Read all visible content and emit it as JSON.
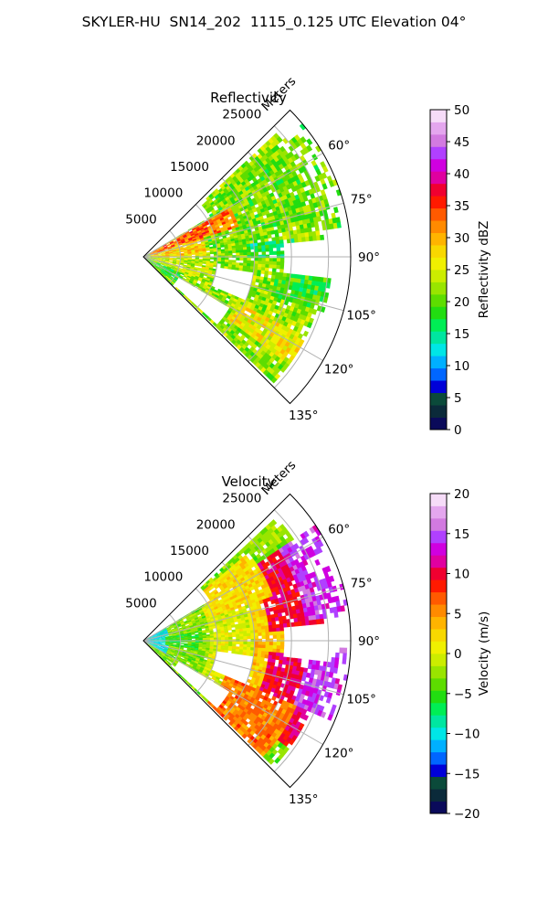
{
  "figure": {
    "title": "SKYLER-HU  SN14_202  1115_0.125 UTC Elevation 04°"
  },
  "chart_data": [
    {
      "type": "heatmap",
      "title": "Reflectivity",
      "projection": "polar-sector",
      "azimuth_range_deg": [
        45,
        135
      ],
      "azimuth_ticks": [
        60,
        75,
        90,
        105,
        120,
        135
      ],
      "azimuth_tick_labels": [
        "60°",
        "75°",
        "90°",
        "105°",
        "120°",
        "135°"
      ],
      "range_max_m": 28000,
      "range_ticks": [
        5000,
        10000,
        15000,
        20000,
        25000
      ],
      "range_tick_labels": [
        "5000",
        "10000",
        "15000",
        "20000",
        "25000"
      ],
      "range_label": "Meters",
      "grid": true,
      "colorbar": {
        "label": "Reflectivity dBZ",
        "min": 0,
        "max": 50,
        "ticks": [
          0,
          5,
          10,
          15,
          20,
          25,
          30,
          35,
          40,
          45,
          50
        ],
        "tick_labels": [
          "0",
          "5",
          "10",
          "15",
          "20",
          "25",
          "30",
          "35",
          "40",
          "45",
          "50"
        ],
        "colors": [
          "#0a0a5a",
          "#0b2a3a",
          "#0b4a3a",
          "#0000d8",
          "#0066ff",
          "#00b0ff",
          "#00e6e6",
          "#00e6a0",
          "#00ee55",
          "#22dd11",
          "#5ddd00",
          "#99e500",
          "#cced00",
          "#f0f000",
          "#f8d800",
          "#ffb400",
          "#ff8a00",
          "#ff5a00",
          "#ff1a00",
          "#f00030",
          "#e000a0",
          "#d000e0",
          "#b040ff",
          "#d27ae0",
          "#e4a6ee",
          "#f6dcf8"
        ]
      },
      "regions": [
        {
          "az": [
            47,
            133
          ],
          "r": [
            0,
            24000
          ],
          "value": 22
        },
        {
          "az": [
            50,
            80
          ],
          "r": [
            8000,
            28000
          ],
          "value": 21
        },
        {
          "az": [
            60,
            72
          ],
          "r": [
            800,
            13000
          ],
          "value": 32
        },
        {
          "az": [
            72,
            88
          ],
          "r": [
            1000,
            8000
          ],
          "value": 28
        },
        {
          "az": [
            88,
            110
          ],
          "r": [
            1500,
            9000
          ],
          "value": 24
        },
        {
          "az": [
            112,
            128
          ],
          "r": [
            500,
            5500
          ],
          "value": 18
        },
        {
          "az": [
            115,
            126
          ],
          "r": [
            14000,
            24000
          ],
          "value": 26
        },
        {
          "az": [
            96,
            106
          ],
          "r": [
            18000,
            25000
          ],
          "value": 19
        },
        {
          "az": [
            82,
            90
          ],
          "r": [
            14000,
            20000
          ],
          "value": 17
        },
        {
          "az": [
            62,
            70
          ],
          "r": [
            3000,
            9000
          ],
          "value": 34
        }
      ],
      "gaps": [
        {
          "az": [
            84,
            96
          ],
          "r": [
            19000,
            25000
          ]
        },
        {
          "az": [
            98,
            112
          ],
          "r": [
            10000,
            14500
          ]
        },
        {
          "az": [
            120,
            132
          ],
          "r": [
            5500,
            13000
          ]
        },
        {
          "az": [
            47,
            58
          ],
          "r": [
            0,
            10000
          ]
        }
      ]
    },
    {
      "type": "heatmap",
      "title": "Velocity",
      "projection": "polar-sector",
      "azimuth_range_deg": [
        45,
        135
      ],
      "azimuth_ticks": [
        60,
        75,
        90,
        105,
        120,
        135
      ],
      "azimuth_tick_labels": [
        "60°",
        "75°",
        "90°",
        "105°",
        "120°",
        "135°"
      ],
      "range_max_m": 28000,
      "range_ticks": [
        5000,
        10000,
        15000,
        20000,
        25000
      ],
      "range_tick_labels": [
        "5000",
        "10000",
        "15000",
        "20000",
        "25000"
      ],
      "range_label": "Meters",
      "grid": true,
      "colorbar": {
        "label": "Velocity (m/s)",
        "min": -20,
        "max": 20,
        "ticks": [
          -20,
          -15,
          -10,
          -5,
          0,
          5,
          10,
          15,
          20
        ],
        "tick_labels": [
          "−20",
          "−15",
          "−10",
          "−5",
          "0",
          "5",
          "10",
          "15",
          "20"
        ],
        "colors": [
          "#0a0a5a",
          "#0b2a3a",
          "#0b4a3a",
          "#0000d8",
          "#0066ff",
          "#00b0ff",
          "#00e6e6",
          "#00e6a0",
          "#00ee55",
          "#22dd11",
          "#5ddd00",
          "#99e500",
          "#cced00",
          "#f0f000",
          "#f8d800",
          "#ffb400",
          "#ff8a00",
          "#ff5a00",
          "#ff1a00",
          "#f00030",
          "#e000a0",
          "#d000e0",
          "#b040ff",
          "#d27ae0",
          "#e4a6ee",
          "#f6dcf8"
        ]
      },
      "regions": [
        {
          "az": [
            47,
            133
          ],
          "r": [
            0,
            24000
          ],
          "value": -3
        },
        {
          "az": [
            60,
            120
          ],
          "r": [
            9000,
            17000
          ],
          "value": 0
        },
        {
          "az": [
            60,
            120
          ],
          "r": [
            15000,
            20000
          ],
          "value": 3
        },
        {
          "az": [
            55,
            85
          ],
          "r": [
            17000,
            24000
          ],
          "value": 10
        },
        {
          "az": [
            95,
            125
          ],
          "r": [
            17000,
            24000
          ],
          "value": 10
        },
        {
          "az": [
            55,
            82
          ],
          "r": [
            22000,
            28000
          ],
          "value": 14
        },
        {
          "az": [
            92,
            112
          ],
          "r": [
            22000,
            28000
          ],
          "value": 14
        },
        {
          "az": [
            112,
            133
          ],
          "r": [
            12000,
            22000
          ],
          "value": 6
        },
        {
          "az": [
            50,
            70
          ],
          "r": [
            10000,
            18000
          ],
          "value": 2
        },
        {
          "az": [
            60,
            120
          ],
          "r": [
            0,
            3000
          ],
          "value": -10
        },
        {
          "az": [
            80,
            100
          ],
          "r": [
            3000,
            7000
          ],
          "value": -5
        }
      ],
      "gaps": [
        {
          "az": [
            84,
            96
          ],
          "r": [
            19000,
            25000
          ]
        },
        {
          "az": [
            98,
            112
          ],
          "r": [
            10000,
            14500
          ]
        },
        {
          "az": [
            120,
            132
          ],
          "r": [
            5500,
            13000
          ]
        },
        {
          "az": [
            47,
            58
          ],
          "r": [
            0,
            10000
          ]
        }
      ]
    }
  ]
}
